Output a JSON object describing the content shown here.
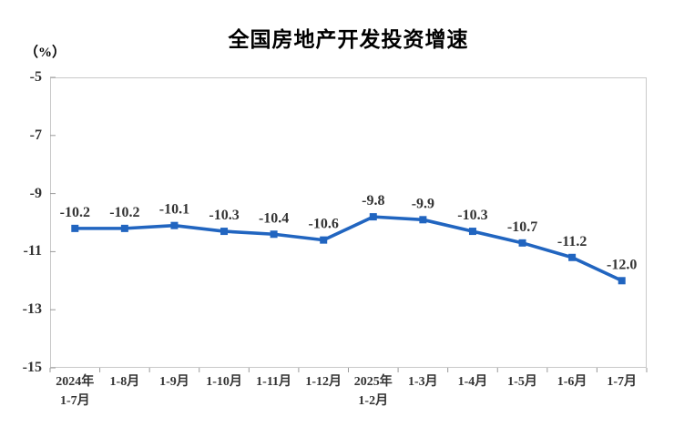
{
  "page": {
    "background": "#ffffff"
  },
  "chart_data": {
    "type": "line",
    "title": "全国房地产开发投资增速",
    "ylabel": "（%）",
    "categories": [
      [
        "2024年",
        "1-7月"
      ],
      [
        "1-8月"
      ],
      [
        "1-9月"
      ],
      [
        "1-10月"
      ],
      [
        "1-11月"
      ],
      [
        "1-12月"
      ],
      [
        "2025年",
        "1-2月"
      ],
      [
        "1-3月"
      ],
      [
        "1-4月"
      ],
      [
        "1-5月"
      ],
      [
        "1-6月"
      ],
      [
        "1-7月"
      ]
    ],
    "series": [
      {
        "name": "全国房地产开发投资增速",
        "values": [
          -10.2,
          -10.2,
          -10.1,
          -10.3,
          -10.4,
          -10.6,
          -9.8,
          -9.9,
          -10.3,
          -10.7,
          -11.2,
          -12.0
        ]
      }
    ],
    "data_labels": [
      "-10.2",
      "-10.2",
      "-10.1",
      "-10.3",
      "-10.4",
      "-10.6",
      "-9.8",
      "-9.9",
      "-10.3",
      "-10.7",
      "-11.2",
      "-12.0"
    ],
    "ytick_labels": [
      "-5",
      "-7",
      "-9",
      "-11",
      "-13",
      "-15"
    ],
    "yticks": [
      -5,
      -7,
      -9,
      -11,
      -13,
      -15
    ],
    "ylim": [
      -15,
      -5
    ],
    "grid": false,
    "legend": "none",
    "colors": {
      "line": "#2165c0",
      "marker": "#2165c0",
      "plot_border": "#c9c9c9",
      "tick": "#9a9a9a",
      "axis_text": "#333333",
      "data_label_text": "#333333",
      "title_text": "#1a1a1a"
    }
  }
}
